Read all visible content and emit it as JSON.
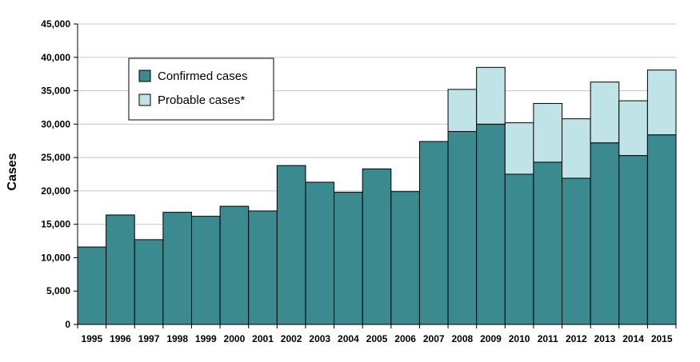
{
  "chart_data": {
    "type": "bar",
    "stacked": true,
    "title": "",
    "xlabel": "",
    "ylabel": "Cases",
    "ylim": [
      0,
      45000
    ],
    "yticks": [
      0,
      5000,
      10000,
      15000,
      20000,
      25000,
      30000,
      35000,
      40000,
      45000
    ],
    "ytick_labels": [
      "0",
      "5,000",
      "10,000",
      "15,000",
      "20,000",
      "25,000",
      "30,000",
      "35,000",
      "40,000",
      "45,000"
    ],
    "grid": true,
    "legend_position": "top-left",
    "categories": [
      "1995",
      "1996",
      "1997",
      "1998",
      "1999",
      "2000",
      "2001",
      "2002",
      "2003",
      "2004",
      "2005",
      "2006",
      "2007",
      "2008",
      "2009",
      "2010",
      "2011",
      "2012",
      "2013",
      "2014",
      "2015"
    ],
    "series": [
      {
        "name": "Confirmed cases",
        "color": "#3a8a8f",
        "values": [
          11600,
          16400,
          12700,
          16800,
          16200,
          17700,
          17000,
          23800,
          21300,
          19800,
          23300,
          19900,
          27400,
          28900,
          30000,
          22500,
          24300,
          21900,
          27200,
          25300,
          28400
        ]
      },
      {
        "name": "Probable cases*",
        "color": "#bfe3e6",
        "values": [
          0,
          0,
          0,
          0,
          0,
          0,
          0,
          0,
          0,
          0,
          0,
          0,
          0,
          6300,
          8500,
          7700,
          8800,
          8900,
          9100,
          8200,
          9700
        ]
      }
    ]
  }
}
